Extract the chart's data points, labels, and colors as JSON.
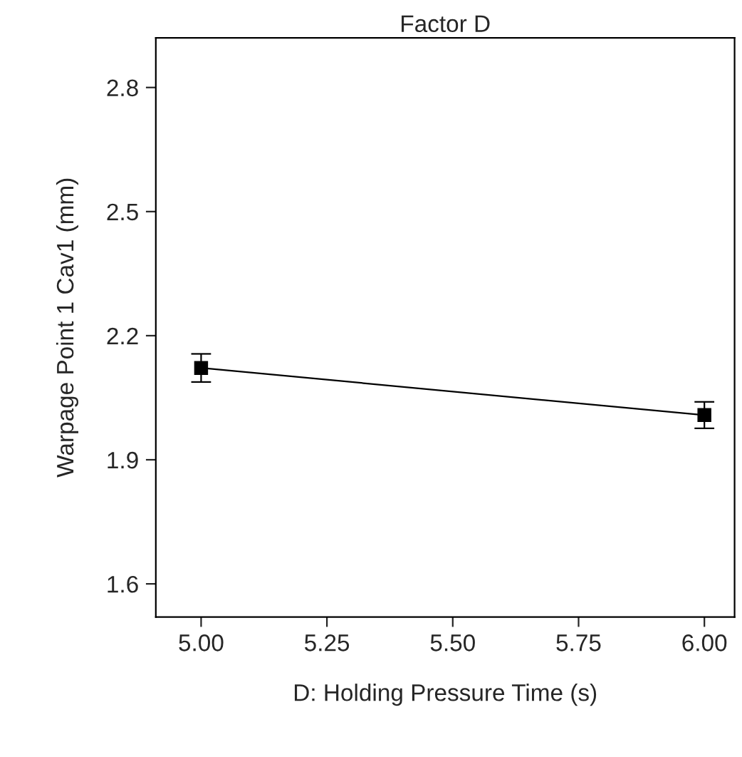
{
  "chart_data": {
    "type": "line",
    "title": "Factor D",
    "xlabel": "D: Holding Pressure Time (s)",
    "ylabel": "Warpage Point 1 Cav1 (mm)",
    "x": [
      5.0,
      6.0
    ],
    "series": [
      {
        "color": "#000000",
        "values": [
          2.122,
          2.008
        ],
        "errors": [
          0.034,
          0.032
        ]
      }
    ],
    "marker": "square",
    "line_style": "solid",
    "grid": false,
    "legend": false,
    "xlim": [
      4.91,
      6.06
    ],
    "ylim": [
      1.52,
      2.92
    ],
    "xticks": [
      {
        "value": 5.0,
        "label": "5.00"
      },
      {
        "value": 5.25,
        "label": "5.25"
      },
      {
        "value": 5.5,
        "label": "5.50"
      },
      {
        "value": 5.75,
        "label": "5.75"
      },
      {
        "value": 6.0,
        "label": "6.00"
      }
    ],
    "yticks": [
      1.6,
      1.9,
      2.2,
      2.5,
      2.8
    ]
  }
}
